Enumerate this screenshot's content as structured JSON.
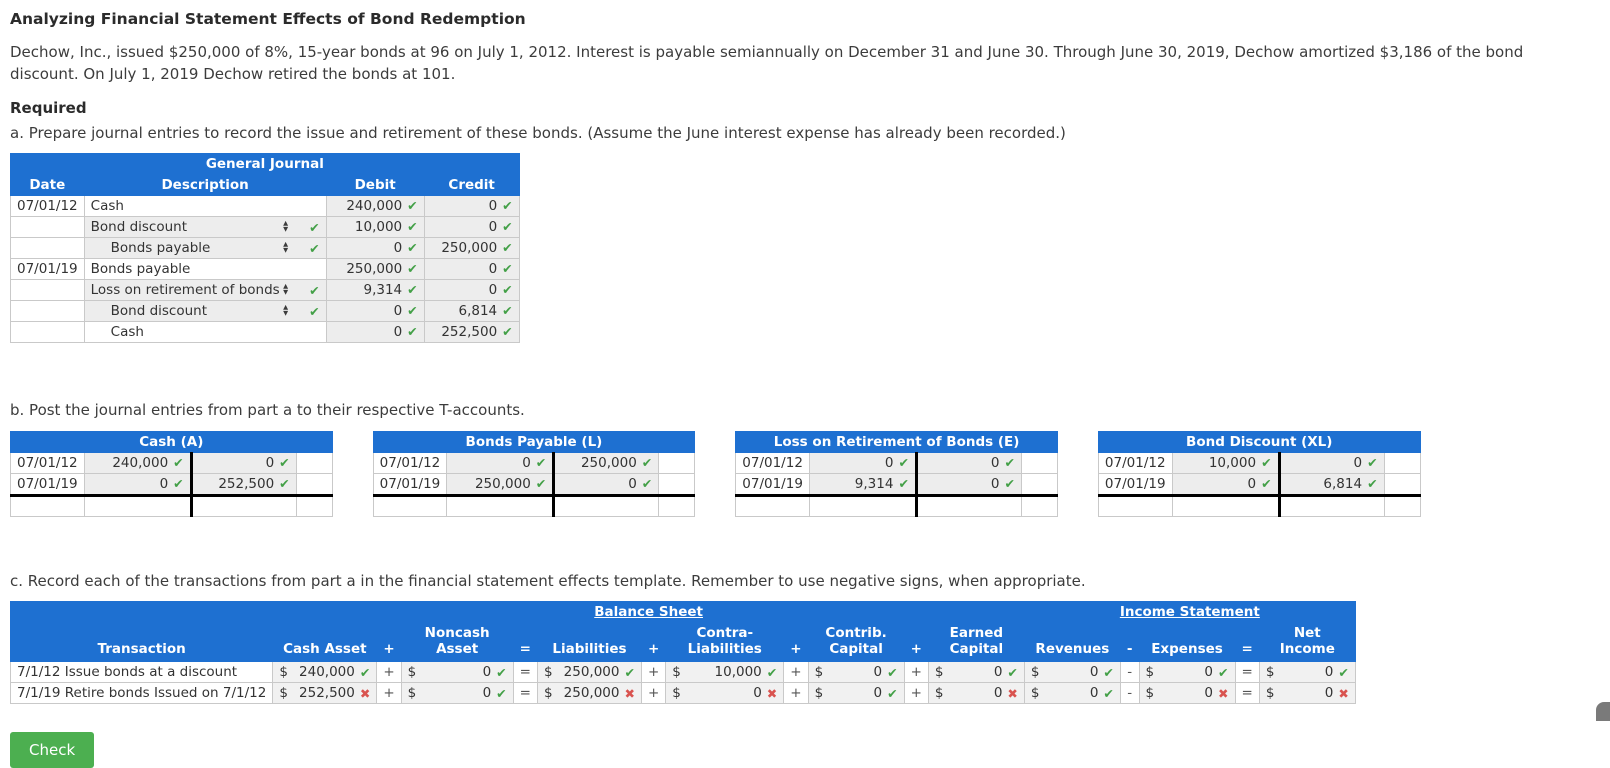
{
  "page": {
    "title": "Analyzing Financial Statement Effects of Bond Redemption",
    "problem_text": "Dechow, Inc., issued $250,000 of 8%, 15-year bonds at 96 on July 1, 2012. Interest is payable semiannually on December 31 and June 30. Through June 30, 2019, Dechow amortized $3,186 of the bond discount. On July 1, 2019 Dechow retired the bonds at 101.",
    "required_label": "Required",
    "part_a_instruction": "a. Prepare journal entries to record the issue and retirement of these bonds. (Assume the June interest expense has already been recorded.)",
    "part_b_instruction": "b. Post the journal entries from part a to their respective T-accounts.",
    "part_c_instruction": "c. Record each of the transactions from part a in the financial statement effects template. Remember to use negative signs, when appropriate.",
    "check_button_label": "Check"
  },
  "colors": {
    "header_blue": "#1e70d1",
    "check_green": "#43a047",
    "cross_red": "#d9534f",
    "button_green": "#4caf50",
    "cell_gray": "#ededed"
  },
  "icons": {
    "check": "✔",
    "cross": "✖",
    "select_up": "▲",
    "select_down": "▼"
  },
  "currency_symbol": "$",
  "journal": {
    "title": "General Journal",
    "columns": {
      "date": "Date",
      "description": "Description",
      "debit": "Debit",
      "credit": "Credit"
    },
    "rows": [
      {
        "date": "07/01/12",
        "description": "Cash",
        "indent": 0,
        "select": false,
        "debit": "240,000",
        "debit_mark": "check",
        "credit": "0",
        "credit_mark": "check"
      },
      {
        "date": "",
        "description": "Bond discount",
        "indent": 0,
        "select": true,
        "select_mark": "check",
        "debit": "10,000",
        "debit_mark": "check",
        "credit": "0",
        "credit_mark": "check"
      },
      {
        "date": "",
        "description": "Bonds payable",
        "indent": 1,
        "select": true,
        "select_mark": "check",
        "debit": "0",
        "debit_mark": "check",
        "credit": "250,000",
        "credit_mark": "check"
      },
      {
        "date": "07/01/19",
        "description": "Bonds payable",
        "indent": 0,
        "select": false,
        "debit": "250,000",
        "debit_mark": "check",
        "credit": "0",
        "credit_mark": "check"
      },
      {
        "date": "",
        "description": "Loss on retirement of bonds",
        "indent": 0,
        "select": true,
        "select_mark": "check",
        "debit": "9,314",
        "debit_mark": "check",
        "credit": "0",
        "credit_mark": "check"
      },
      {
        "date": "",
        "description": "Bond discount",
        "indent": 1,
        "select": true,
        "select_mark": "check",
        "debit": "0",
        "debit_mark": "check",
        "credit": "6,814",
        "credit_mark": "check"
      },
      {
        "date": "",
        "description": "Cash",
        "indent": 1,
        "select": false,
        "debit": "0",
        "debit_mark": "check",
        "credit": "252,500",
        "credit_mark": "check"
      }
    ]
  },
  "t_accounts": [
    {
      "title": "Cash (A)",
      "rows": [
        {
          "date": "07/01/12",
          "debit": "240,000",
          "debit_mark": "check",
          "credit": "0",
          "credit_mark": "check"
        },
        {
          "date": "07/01/19",
          "debit": "0",
          "debit_mark": "check",
          "credit": "252,500",
          "credit_mark": "check"
        }
      ]
    },
    {
      "title": "Bonds Payable (L)",
      "rows": [
        {
          "date": "07/01/12",
          "debit": "0",
          "debit_mark": "check",
          "credit": "250,000",
          "credit_mark": "check"
        },
        {
          "date": "07/01/19",
          "debit": "250,000",
          "debit_mark": "check",
          "credit": "0",
          "credit_mark": "check"
        }
      ]
    },
    {
      "title": "Loss on Retirement of Bonds (E)",
      "rows": [
        {
          "date": "07/01/12",
          "debit": "0",
          "debit_mark": "check",
          "credit": "0",
          "credit_mark": "check"
        },
        {
          "date": "07/01/19",
          "debit": "9,314",
          "debit_mark": "check",
          "credit": "0",
          "credit_mark": "check"
        }
      ]
    },
    {
      "title": "Bond Discount (XL)",
      "rows": [
        {
          "date": "07/01/12",
          "debit": "10,000",
          "debit_mark": "check",
          "credit": "0",
          "credit_mark": "check"
        },
        {
          "date": "07/01/19",
          "debit": "0",
          "debit_mark": "check",
          "credit": "6,814",
          "credit_mark": "check"
        }
      ]
    }
  ],
  "effects_table": {
    "headers": {
      "balance_sheet": "Balance Sheet",
      "income_statement": "Income Statement",
      "transaction": "Transaction",
      "cash_asset": "Cash Asset",
      "noncash_asset": "Noncash Asset",
      "liabilities": "Liabilities",
      "contra_liabilities": "Contra-Liabilities",
      "contrib_capital": "Contrib. Capital",
      "earned_capital": "Earned Capital",
      "revenues": "Revenues",
      "expenses": "Expenses",
      "net_income": "Net Income",
      "plus": "+",
      "equals": "=",
      "minus": "-"
    },
    "rows": [
      {
        "transaction": "7/1/12 Issue bonds at a discount",
        "cash_asset": {
          "value": "240,000",
          "mark": "check"
        },
        "noncash_asset": {
          "value": "0",
          "mark": "check"
        },
        "liabilities": {
          "value": "250,000",
          "mark": "check"
        },
        "contra_liabilities": {
          "value": "10,000",
          "mark": "check"
        },
        "contrib_capital": {
          "value": "0",
          "mark": "check"
        },
        "earned_capital": {
          "value": "0",
          "mark": "check"
        },
        "revenues": {
          "value": "0",
          "mark": "check"
        },
        "expenses": {
          "value": "0",
          "mark": "check"
        },
        "net_income": {
          "value": "0",
          "mark": "check"
        }
      },
      {
        "transaction": "7/1/19 Retire bonds Issued on 7/1/12",
        "cash_asset": {
          "value": "252,500",
          "mark": "cross"
        },
        "noncash_asset": {
          "value": "0",
          "mark": "check"
        },
        "liabilities": {
          "value": "250,000",
          "mark": "cross"
        },
        "contra_liabilities": {
          "value": "0",
          "mark": "cross"
        },
        "contrib_capital": {
          "value": "0",
          "mark": "check"
        },
        "earned_capital": {
          "value": "0",
          "mark": "cross"
        },
        "revenues": {
          "value": "0",
          "mark": "check"
        },
        "expenses": {
          "value": "0",
          "mark": "cross"
        },
        "net_income": {
          "value": "0",
          "mark": "cross"
        }
      }
    ]
  }
}
